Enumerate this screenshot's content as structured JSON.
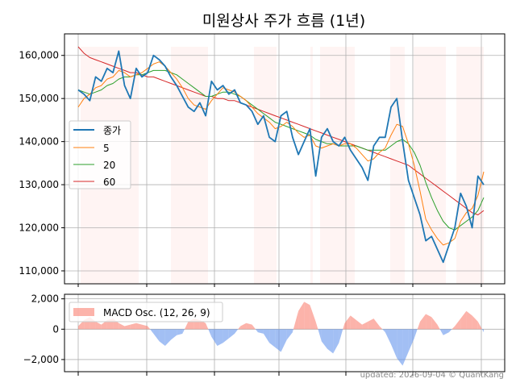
{
  "chart_data": [
    {
      "type": "line",
      "title": "미원상사 주가 흐름 (1년)",
      "ylim": [
        107000,
        165000
      ],
      "y_ticks": [
        "110,000",
        "120,000",
        "130,000",
        "140,000",
        "150,000",
        "160,000"
      ],
      "y_tick_values": [
        110000,
        120000,
        130000,
        140000,
        150000,
        160000
      ],
      "grid": true,
      "legend_position": "center-left",
      "n_points": 71,
      "series": [
        {
          "name": "종가",
          "color": "#1f77b4",
          "values": [
            152000,
            151000,
            149500,
            155000,
            154000,
            157000,
            156000,
            161000,
            153000,
            150000,
            157000,
            155000,
            156000,
            160000,
            159000,
            157500,
            155000,
            153000,
            150500,
            148000,
            147000,
            149000,
            146000,
            154000,
            152000,
            153000,
            151000,
            152000,
            149000,
            148500,
            147000,
            144000,
            146000,
            141000,
            140000,
            146000,
            147000,
            141000,
            137000,
            140000,
            143000,
            132000,
            141000,
            143000,
            140000,
            139000,
            141000,
            138000,
            136000,
            134000,
            131000,
            139000,
            141000,
            141000,
            148000,
            150000,
            140000,
            131000,
            127000,
            123000,
            117000,
            118000,
            115000,
            112000,
            116000,
            120000,
            128000,
            125000,
            120000,
            132000,
            130000
          ]
        },
        {
          "name": "5",
          "color": "#ff7f0e",
          "values": [
            148000,
            150000,
            151000,
            152500,
            153000,
            154500,
            155000,
            156500,
            156000,
            155000,
            155500,
            156000,
            157000,
            158000,
            158500,
            157500,
            156000,
            154500,
            152500,
            150000,
            148500,
            148000,
            147500,
            149500,
            151000,
            152500,
            152000,
            151500,
            150500,
            149500,
            148000,
            146500,
            145500,
            144500,
            143000,
            143500,
            144500,
            143500,
            142000,
            141000,
            141500,
            139000,
            138500,
            139000,
            139500,
            139000,
            139500,
            139500,
            138500,
            137000,
            135500,
            136000,
            137500,
            138500,
            141500,
            144000,
            143500,
            139500,
            134500,
            128500,
            122000,
            119500,
            117500,
            116000,
            116500,
            117500,
            121500,
            123500,
            124500,
            127500,
            133000
          ]
        },
        {
          "name": "20",
          "color": "#2ca02c",
          "values": [
            152000,
            151500,
            151000,
            151500,
            152000,
            153000,
            153500,
            154500,
            155000,
            155000,
            155500,
            155500,
            156000,
            156500,
            156500,
            156500,
            156000,
            155500,
            154500,
            153500,
            152500,
            151500,
            150500,
            150500,
            151000,
            151500,
            151500,
            151000,
            150500,
            149500,
            148500,
            147500,
            146500,
            145500,
            144500,
            144000,
            143500,
            143000,
            142500,
            142000,
            141500,
            140500,
            140000,
            139500,
            139500,
            139000,
            139000,
            139000,
            139000,
            138500,
            138000,
            138000,
            138000,
            138000,
            139000,
            140000,
            140500,
            139500,
            137500,
            134500,
            130500,
            127000,
            124000,
            121500,
            120000,
            119500,
            120500,
            121500,
            122500,
            124000,
            127000
          ]
        },
        {
          "name": "60",
          "color": "#d62728",
          "values": [
            162000,
            160500,
            159500,
            159000,
            158500,
            158000,
            157500,
            157000,
            156500,
            156000,
            156000,
            155500,
            155000,
            155000,
            154500,
            154000,
            153500,
            153000,
            152500,
            152000,
            151500,
            151000,
            150500,
            150500,
            150000,
            150000,
            149500,
            149500,
            149000,
            148500,
            148000,
            147500,
            147000,
            146500,
            146000,
            145500,
            145000,
            144500,
            144000,
            143500,
            143000,
            142500,
            142000,
            141500,
            141000,
            140500,
            140000,
            139500,
            139000,
            138500,
            138000,
            137500,
            137000,
            136500,
            136000,
            135500,
            135000,
            134500,
            133500,
            132500,
            131500,
            130500,
            129500,
            128500,
            127500,
            126500,
            125500,
            124500,
            123500,
            123000,
            124000
          ]
        }
      ]
    },
    {
      "type": "area",
      "legend": "MACD Osc. (12, 26, 9)",
      "ylim": [
        -2800,
        2300
      ],
      "y_ticks": [
        "2,000",
        "0",
        "−2,000"
      ],
      "y_tick_values": [
        2000,
        0,
        -2000
      ],
      "grid": true,
      "legend_position": "top-left",
      "positive_color": "#fa8072",
      "negative_color": "#6495ed",
      "values": [
        200,
        600,
        800,
        500,
        300,
        600,
        700,
        400,
        200,
        300,
        400,
        300,
        200,
        -300,
        -800,
        -1100,
        -700,
        -400,
        -300,
        500,
        700,
        600,
        400,
        -500,
        -1100,
        -900,
        -600,
        -300,
        200,
        400,
        300,
        -200,
        -300,
        -900,
        -1200,
        -1500,
        -700,
        -200,
        1200,
        1800,
        1600,
        500,
        -800,
        -1300,
        -1600,
        -900,
        400,
        900,
        600,
        300,
        500,
        700,
        200,
        -200,
        -1000,
        -1900,
        -2400,
        -1500,
        -600,
        500,
        1000,
        800,
        300,
        -400,
        -200,
        200,
        700,
        1200,
        900,
        500,
        -200
      ]
    }
  ],
  "footer": "updated: 2026-09-04 © QuantKang"
}
